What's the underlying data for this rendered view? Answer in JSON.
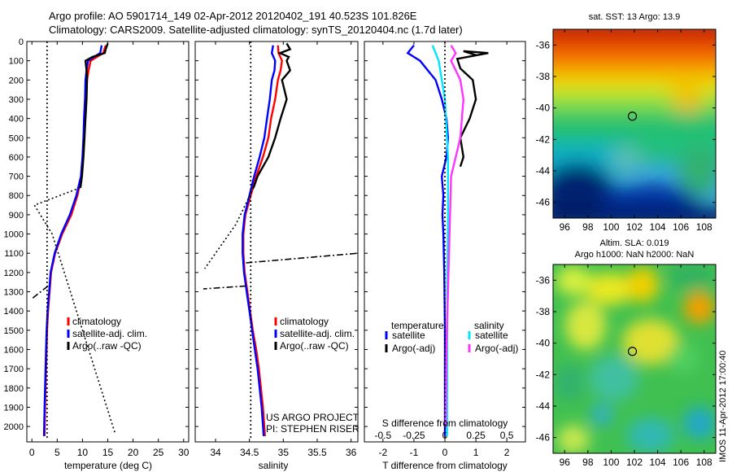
{
  "header": {
    "title_line1": "Argo profile: AO 5901714_149 02-Apr-2012 20120402_191 40.523S 101.826E",
    "title_line2": "Climatology: CARS2009. Satellite-adjusted climatology: synTS_20120404.nc (1.7d later)"
  },
  "credit": {
    "line1": "US ARGO PROJECT",
    "line2": "PI: STEPHEN RISER"
  },
  "side_stamp": "IMOS 11-Apr-2012 17:00:40",
  "colors": {
    "climatology": "#ff0000",
    "satellite": "#0000ff",
    "argo": "#000000",
    "satellite_diff_s": "#00e5ff",
    "argo_diff_s": "#ff33ff",
    "map_marker": "#000000"
  },
  "chart_data": [
    {
      "type": "line",
      "panel": "temperature",
      "xlabel": "temperature (deg C)",
      "ylabel": "",
      "xlim": [
        -1,
        31
      ],
      "ylim": [
        2080,
        0
      ],
      "xticks": [
        0,
        5,
        10,
        15,
        20,
        25,
        30
      ],
      "yticks": [
        0,
        100,
        200,
        300,
        400,
        500,
        600,
        700,
        800,
        900,
        1000,
        1100,
        1200,
        1300,
        1400,
        1500,
        1600,
        1700,
        1800,
        1900,
        2000
      ],
      "legend": [
        "climatology",
        "satellite-adj. clim.",
        "Argo(..raw -QC)"
      ],
      "legend_position": "lower-right",
      "series": [
        {
          "name": "climatology",
          "color": "#ff0000",
          "style": "solid",
          "points": [
            [
              14.6,
              20
            ],
            [
              14.1,
              60
            ],
            [
              11.6,
              100
            ],
            [
              11.2,
              150
            ],
            [
              10.9,
              200
            ],
            [
              10.7,
              300
            ],
            [
              10.5,
              400
            ],
            [
              10.3,
              500
            ],
            [
              10.1,
              600
            ],
            [
              9.8,
              700
            ],
            [
              9.0,
              800
            ],
            [
              7.8,
              900
            ],
            [
              6.0,
              1000
            ],
            [
              4.6,
              1100
            ],
            [
              3.8,
              1200
            ],
            [
              3.5,
              1300
            ],
            [
              3.2,
              1400
            ],
            [
              3.0,
              1500
            ],
            [
              2.9,
              1600
            ],
            [
              2.8,
              1700
            ],
            [
              2.7,
              1800
            ],
            [
              2.6,
              1900
            ],
            [
              2.5,
              2050
            ]
          ]
        },
        {
          "name": "satellite-adj. clim.",
          "color": "#0000ff",
          "style": "solid",
          "points": [
            [
              13.8,
              20
            ],
            [
              13.5,
              60
            ],
            [
              11.1,
              100
            ],
            [
              10.8,
              150
            ],
            [
              10.6,
              200
            ],
            [
              10.5,
              300
            ],
            [
              10.3,
              400
            ],
            [
              10.2,
              500
            ],
            [
              10.0,
              600
            ],
            [
              9.7,
              700
            ],
            [
              8.8,
              800
            ],
            [
              7.5,
              900
            ],
            [
              5.8,
              1000
            ],
            [
              4.5,
              1100
            ],
            [
              3.7,
              1200
            ],
            [
              3.4,
              1300
            ],
            [
              3.1,
              1400
            ],
            [
              2.9,
              1500
            ],
            [
              2.8,
              1600
            ],
            [
              2.7,
              1700
            ],
            [
              2.6,
              1800
            ],
            [
              2.5,
              1900
            ],
            [
              2.4,
              2050
            ]
          ]
        },
        {
          "name": "Argo(..raw -QC)",
          "color": "#000000",
          "style": "solid",
          "points": [
            [
              15.0,
              10
            ],
            [
              14.6,
              40
            ],
            [
              14.4,
              60
            ],
            [
              12.0,
              80
            ],
            [
              10.6,
              100
            ],
            [
              10.8,
              150
            ],
            [
              10.9,
              200
            ],
            [
              10.8,
              300
            ],
            [
              10.6,
              400
            ],
            [
              10.4,
              500
            ],
            [
              10.2,
              600
            ],
            [
              9.9,
              700
            ],
            [
              9.6,
              760
            ]
          ]
        },
        {
          "name": "",
          "color": "#000000",
          "style": "dotted",
          "points": [
            [
              3.0,
              0
            ],
            [
              3.0,
              2060
            ]
          ]
        },
        {
          "name": "",
          "color": "#000000",
          "style": "dotted",
          "points": [
            [
              9.5,
              760
            ],
            [
              0.5,
              850
            ],
            [
              4.0,
              1000
            ],
            [
              16.5,
              2040
            ]
          ]
        },
        {
          "name": "",
          "color": "#000000",
          "style": "dashdot",
          "points": [
            [
              3.2,
              1270
            ],
            [
              -0.2,
              1340
            ]
          ]
        }
      ]
    },
    {
      "type": "line",
      "panel": "salinity",
      "xlabel": "salinity",
      "ylabel": "",
      "xlim": [
        33.7,
        36.1
      ],
      "ylim": [
        2080,
        0
      ],
      "xticks": [
        34,
        34.5,
        35,
        35.5,
        36
      ],
      "xticklabels": [
        "34",
        "34.5",
        "35",
        "35.5",
        "36"
      ],
      "legend": [
        "climatology",
        "satellite-adj. clim.",
        "Argo(..raw -QC)"
      ],
      "legend_position": "lower-right",
      "series": [
        {
          "name": "climatology",
          "color": "#ff0000",
          "style": "solid",
          "points": [
            [
              34.92,
              20
            ],
            [
              34.93,
              60
            ],
            [
              34.98,
              100
            ],
            [
              34.96,
              150
            ],
            [
              34.92,
              200
            ],
            [
              34.88,
              300
            ],
            [
              34.82,
              400
            ],
            [
              34.78,
              500
            ],
            [
              34.7,
              600
            ],
            [
              34.6,
              700
            ],
            [
              34.52,
              800
            ],
            [
              34.44,
              900
            ],
            [
              34.41,
              1000
            ],
            [
              34.41,
              1100
            ],
            [
              34.43,
              1200
            ],
            [
              34.47,
              1300
            ],
            [
              34.51,
              1400
            ],
            [
              34.55,
              1500
            ],
            [
              34.6,
              1600
            ],
            [
              34.64,
              1700
            ],
            [
              34.67,
              1800
            ],
            [
              34.7,
              1900
            ],
            [
              34.73,
              2050
            ]
          ]
        },
        {
          "name": "satellite-adj. clim.",
          "color": "#0000ff",
          "style": "solid",
          "points": [
            [
              34.85,
              20
            ],
            [
              34.83,
              60
            ],
            [
              34.88,
              100
            ],
            [
              34.87,
              150
            ],
            [
              34.83,
              200
            ],
            [
              34.8,
              300
            ],
            [
              34.76,
              400
            ],
            [
              34.72,
              500
            ],
            [
              34.65,
              600
            ],
            [
              34.57,
              700
            ],
            [
              34.5,
              800
            ],
            [
              34.43,
              900
            ],
            [
              34.4,
              1000
            ],
            [
              34.4,
              1100
            ],
            [
              34.42,
              1200
            ],
            [
              34.46,
              1300
            ],
            [
              34.5,
              1400
            ],
            [
              34.54,
              1500
            ],
            [
              34.58,
              1600
            ],
            [
              34.62,
              1700
            ],
            [
              34.65,
              1800
            ],
            [
              34.68,
              1900
            ],
            [
              34.71,
              2050
            ]
          ]
        },
        {
          "name": "Argo(..raw -QC)",
          "color": "#000000",
          "style": "solid",
          "points": [
            [
              35.05,
              10
            ],
            [
              35.1,
              40
            ],
            [
              34.95,
              60
            ],
            [
              35.08,
              80
            ],
            [
              35.05,
              100
            ],
            [
              35.1,
              150
            ],
            [
              34.98,
              200
            ],
            [
              35.05,
              300
            ],
            [
              34.96,
              400
            ],
            [
              34.88,
              500
            ],
            [
              34.78,
              600
            ],
            [
              34.62,
              700
            ],
            [
              34.56,
              760
            ]
          ]
        },
        {
          "name": "",
          "color": "#000000",
          "style": "dotted",
          "points": [
            [
              34.52,
              0
            ],
            [
              34.52,
              2060
            ]
          ]
        },
        {
          "name": "",
          "color": "#000000",
          "style": "dotted",
          "points": [
            [
              34.56,
              760
            ],
            [
              34.3,
              950
            ],
            [
              33.84,
              1180
            ]
          ]
        },
        {
          "name": "",
          "color": "#000000",
          "style": "dashdot",
          "points": [
            [
              34.45,
              1150
            ],
            [
              36.1,
              1100
            ]
          ]
        },
        {
          "name": "",
          "color": "#000000",
          "style": "dashdot",
          "points": [
            [
              34.45,
              1270
            ],
            [
              33.82,
              1285
            ]
          ]
        }
      ]
    },
    {
      "type": "line",
      "panel": "difference",
      "xlabel": "T difference from climatology",
      "xlabel_top": "S difference from climatology",
      "xlim": [
        -2.6,
        2.6
      ],
      "ylim": [
        2080,
        0
      ],
      "xticks": [
        -2,
        -1,
        0,
        1,
        2
      ],
      "xticks_top": [
        -0.5,
        -0.25,
        0,
        0.25,
        0.5
      ],
      "xticklabels_top": [
        "-0.5",
        "-0.25",
        "0",
        "0.25",
        "0.5"
      ],
      "legend_groups": [
        "temperature",
        "salinity"
      ],
      "legend": [
        "satellite",
        "Argo(-adj)",
        "satellite",
        "Argo(-adj)"
      ],
      "legend_position": "lower-center",
      "series": [
        {
          "name": "satellite",
          "group": "temperature",
          "color": "#0000ff",
          "style": "solid",
          "points": [
            [
              -1.0,
              20
            ],
            [
              -1.2,
              60
            ],
            [
              -0.8,
              100
            ],
            [
              -0.3,
              200
            ],
            [
              -0.1,
              300
            ],
            [
              0.05,
              400
            ],
            [
              0.1,
              500
            ],
            [
              0.05,
              600
            ],
            [
              -0.1,
              700
            ],
            [
              -0.05,
              800
            ],
            [
              -0.08,
              900
            ],
            [
              -0.05,
              1000
            ],
            [
              -0.02,
              1200
            ],
            [
              0.0,
              1500
            ],
            [
              0.0,
              2050
            ]
          ]
        },
        {
          "name": "Argo(-adj)",
          "group": "temperature",
          "color": "#000000",
          "style": "solid",
          "points": [
            [
              1.0,
              70
            ],
            [
              0.6,
              50
            ],
            [
              1.4,
              60
            ],
            [
              0.4,
              90
            ],
            [
              0.5,
              140
            ],
            [
              0.9,
              200
            ],
            [
              1.0,
              300
            ],
            [
              0.8,
              400
            ],
            [
              0.5,
              500
            ],
            [
              0.6,
              600
            ],
            [
              0.5,
              650
            ]
          ]
        },
        {
          "name": "satellite",
          "group": "salinity",
          "color": "#00e5ff",
          "style": "solid",
          "points": [
            [
              -0.4,
              20
            ],
            [
              -0.3,
              60
            ],
            [
              -0.2,
              100
            ],
            [
              0.0,
              300
            ],
            [
              0.1,
              600
            ],
            [
              0.1,
              900
            ],
            [
              0.08,
              1200
            ],
            [
              0.07,
              2050
            ]
          ]
        },
        {
          "name": "Argo(-adj)",
          "group": "salinity",
          "color": "#ff33ff",
          "style": "solid",
          "points": [
            [
              0.2,
              20
            ],
            [
              0.35,
              60
            ],
            [
              0.2,
              100
            ],
            [
              0.5,
              200
            ],
            [
              0.6,
              300
            ],
            [
              0.5,
              500
            ],
            [
              0.2,
              700
            ],
            [
              0.05,
              1600
            ],
            [
              0.02,
              2000
            ]
          ]
        },
        {
          "name": "",
          "color": "#000000",
          "style": "dotted",
          "points": [
            [
              0.0,
              0
            ],
            [
              0.0,
              2060
            ]
          ]
        }
      ]
    },
    {
      "type": "heatmap",
      "panel": "sst_map",
      "title": "sat. SST: 13 Argo: 13.9",
      "xlim": [
        95,
        109
      ],
      "ylim": [
        -47,
        -35
      ],
      "xticks": [
        96,
        98,
        100,
        102,
        104,
        106,
        108
      ],
      "yticks": [
        -36,
        -38,
        -40,
        -42,
        -44,
        -46
      ],
      "marker": {
        "lon": 101.826,
        "lat": -40.523
      }
    },
    {
      "type": "heatmap",
      "panel": "sla_map",
      "title_line1": "Altim. SLA: 0.019",
      "title_line2": "Argo h1000: NaN h2000: NaN",
      "xlim": [
        95,
        109
      ],
      "ylim": [
        -47,
        -35
      ],
      "xticks": [
        96,
        98,
        100,
        102,
        104,
        106,
        108
      ],
      "yticks": [
        -36,
        -38,
        -40,
        -42,
        -44,
        -46
      ],
      "marker": {
        "lon": 101.826,
        "lat": -40.523
      }
    }
  ]
}
